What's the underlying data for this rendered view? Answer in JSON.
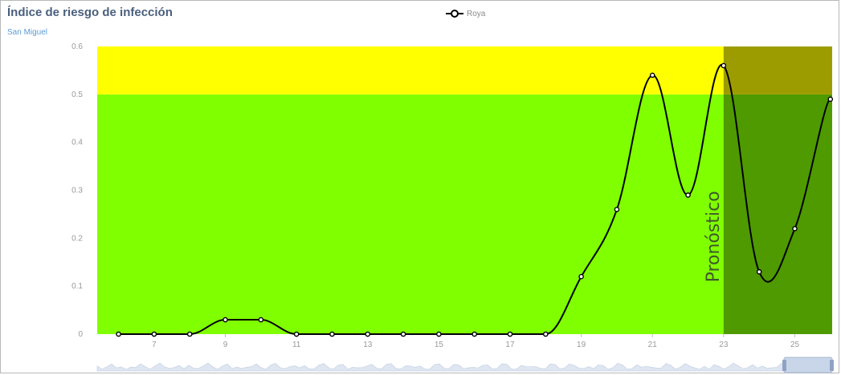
{
  "title": "Índice de riesgo de infección",
  "subtitle": "San Miguel",
  "colors": {
    "low_zone": "#80ff00",
    "high_zone": "#ffff00",
    "forecast_low": "#4f9a00",
    "forecast_high": "#9c9c00",
    "line": "#000000",
    "navigator": "#dfe6f1"
  },
  "chart_data": {
    "type": "line",
    "title": "Índice de riesgo de infección",
    "subtitle": "San Miguel",
    "xlabel": "",
    "ylabel": "",
    "ylim": [
      0,
      0.6
    ],
    "xlim": [
      5.4,
      26.05
    ],
    "yticks": [
      0,
      0.1,
      0.2,
      0.3,
      0.4,
      0.5,
      0.6
    ],
    "ytick_labels": [
      "0",
      "0.1",
      "0.2",
      "0.3",
      "0.4",
      "0.5",
      "0.6"
    ],
    "xticks": [
      7,
      9,
      11,
      13,
      15,
      17,
      19,
      21,
      23,
      25
    ],
    "xtick_labels": [
      "7",
      "9",
      "11",
      "13",
      "15",
      "17",
      "19",
      "21",
      "23",
      "25"
    ],
    "legend_position": "top-center",
    "bands": [
      {
        "from": 0,
        "to": 0.5,
        "color": "#80ff00"
      },
      {
        "from": 0.5,
        "to": 0.6,
        "color": "#ffff00"
      }
    ],
    "forecast": {
      "from": 23,
      "to": 26.05,
      "label": "Pronóstico"
    },
    "series": [
      {
        "name": "Roya",
        "x": [
          6,
          7,
          8,
          9,
          10,
          11,
          12,
          13,
          14,
          15,
          16,
          17,
          18,
          19,
          20,
          21,
          22,
          23,
          24,
          25,
          26
        ],
        "values": [
          0,
          0,
          0,
          0.03,
          0.03,
          0,
          0,
          0,
          0,
          0,
          0,
          0,
          0,
          0.12,
          0.26,
          0.54,
          0.29,
          0.56,
          0.13,
          0.22,
          0.49
        ]
      }
    ]
  }
}
